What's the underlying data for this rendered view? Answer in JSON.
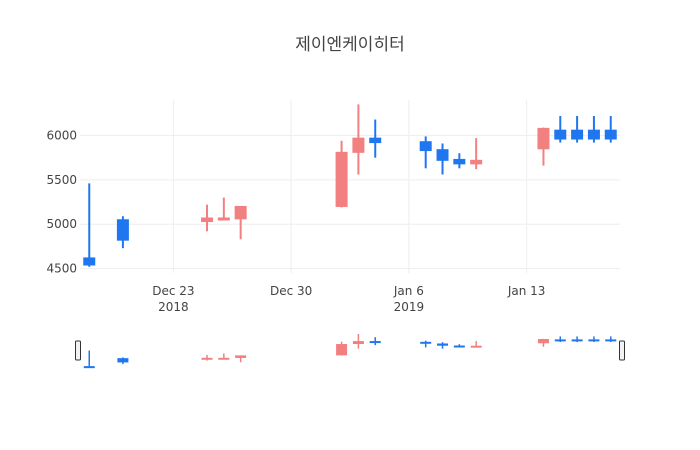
{
  "chart_data": {
    "type": "candlestick",
    "title": "제이엔케이히터",
    "xlabel": "",
    "ylabel": "",
    "ylim": [
      4450,
      6400
    ],
    "grid": true,
    "legend": "none",
    "has_range_slider": true,
    "colors": {
      "increasing": "#1f77f0",
      "decreasing": "#f28080",
      "grid": "#eeeeee"
    },
    "yticks": [
      4500,
      5000,
      5500,
      6000
    ],
    "xticks": [
      {
        "date": "2018-12-23",
        "label": "Dec 23",
        "sublabel": "2018"
      },
      {
        "date": "2018-12-30",
        "label": "Dec 30",
        "sublabel": ""
      },
      {
        "date": "2019-01-06",
        "label": "Jan 6",
        "sublabel": "2019"
      },
      {
        "date": "2019-01-13",
        "label": "Jan 13",
        "sublabel": ""
      }
    ],
    "candles": [
      {
        "date": "2018-12-18",
        "open": 4540,
        "high": 5460,
        "low": 4520,
        "close": 4620
      },
      {
        "date": "2018-12-20",
        "open": 4820,
        "high": 5090,
        "low": 4730,
        "close": 5050
      },
      {
        "date": "2018-12-25",
        "open": 5070,
        "high": 5220,
        "low": 4920,
        "close": 5030
      },
      {
        "date": "2018-12-26",
        "open": 5070,
        "high": 5300,
        "low": 5060,
        "close": 5060
      },
      {
        "date": "2018-12-27",
        "open": 5200,
        "high": 5200,
        "low": 4830,
        "close": 5060
      },
      {
        "date": "2019-01-02",
        "open": 5810,
        "high": 5940,
        "low": 5190,
        "close": 5200
      },
      {
        "date": "2019-01-03",
        "open": 5970,
        "high": 6350,
        "low": 5560,
        "close": 5810
      },
      {
        "date": "2019-01-04",
        "open": 5920,
        "high": 6180,
        "low": 5750,
        "close": 5970
      },
      {
        "date": "2019-01-07",
        "open": 5830,
        "high": 5990,
        "low": 5630,
        "close": 5930
      },
      {
        "date": "2019-01-08",
        "open": 5720,
        "high": 5910,
        "low": 5560,
        "close": 5840
      },
      {
        "date": "2019-01-09",
        "open": 5680,
        "high": 5800,
        "low": 5630,
        "close": 5730
      },
      {
        "date": "2019-01-10",
        "open": 5720,
        "high": 5970,
        "low": 5620,
        "close": 5680
      },
      {
        "date": "2019-01-14",
        "open": 6080,
        "high": 6090,
        "low": 5660,
        "close": 5850
      },
      {
        "date": "2019-01-15",
        "open": 5960,
        "high": 6220,
        "low": 5920,
        "close": 6060
      },
      {
        "date": "2019-01-16",
        "open": 5960,
        "high": 6220,
        "low": 5920,
        "close": 6060
      },
      {
        "date": "2019-01-17",
        "open": 5960,
        "high": 6220,
        "low": 5920,
        "close": 6060
      },
      {
        "date": "2019-01-18",
        "open": 5960,
        "high": 6220,
        "low": 5920,
        "close": 6060
      }
    ]
  }
}
